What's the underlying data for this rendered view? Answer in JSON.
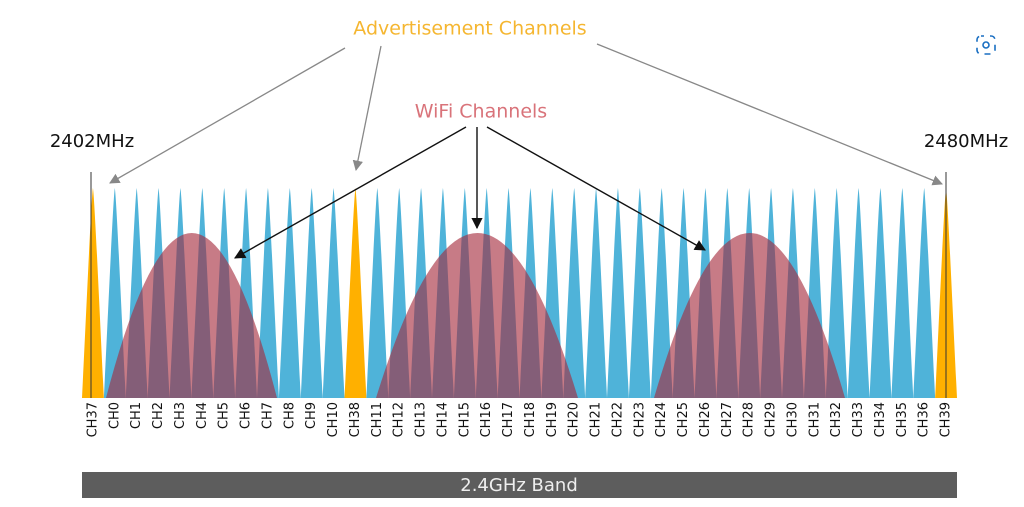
{
  "labels": {
    "advertisement": "Advertisement Channels",
    "wifi": "WiFi Channels",
    "low_freq": "2402MHz",
    "high_freq": "2480MHz",
    "band": "2.4GHz Band"
  },
  "channels": [
    {
      "label": "CH37",
      "color": "#ffb000"
    },
    {
      "label": "CH0",
      "color": "#4fb3d9"
    },
    {
      "label": "CH1",
      "color": "#4fb3d9"
    },
    {
      "label": "CH2",
      "color": "#4fb3d9"
    },
    {
      "label": "CH3",
      "color": "#4fb3d9"
    },
    {
      "label": "CH4",
      "color": "#4fb3d9"
    },
    {
      "label": "CH5",
      "color": "#4fb3d9"
    },
    {
      "label": "CH6",
      "color": "#4fb3d9"
    },
    {
      "label": "CH7",
      "color": "#4fb3d9"
    },
    {
      "label": "CH8",
      "color": "#4fb3d9"
    },
    {
      "label": "CH9",
      "color": "#4fb3d9"
    },
    {
      "label": "CH10",
      "color": "#4fb3d9"
    },
    {
      "label": "CH38",
      "color": "#ffb000"
    },
    {
      "label": "CH11",
      "color": "#4fb3d9"
    },
    {
      "label": "CH12",
      "color": "#4fb3d9"
    },
    {
      "label": "CH13",
      "color": "#4fb3d9"
    },
    {
      "label": "CH14",
      "color": "#4fb3d9"
    },
    {
      "label": "CH15",
      "color": "#4fb3d9"
    },
    {
      "label": "CH16",
      "color": "#4fb3d9"
    },
    {
      "label": "CH17",
      "color": "#4fb3d9"
    },
    {
      "label": "CH18",
      "color": "#4fb3d9"
    },
    {
      "label": "CH19",
      "color": "#4fb3d9"
    },
    {
      "label": "CH20",
      "color": "#4fb3d9"
    },
    {
      "label": "CH21",
      "color": "#4fb3d9"
    },
    {
      "label": "CH22",
      "color": "#4fb3d9"
    },
    {
      "label": "CH23",
      "color": "#4fb3d9"
    },
    {
      "label": "CH24",
      "color": "#4fb3d9"
    },
    {
      "label": "CH25",
      "color": "#4fb3d9"
    },
    {
      "label": "CH26",
      "color": "#4fb3d9"
    },
    {
      "label": "CH27",
      "color": "#4fb3d9"
    },
    {
      "label": "CH28",
      "color": "#4fb3d9"
    },
    {
      "label": "CH29",
      "color": "#4fb3d9"
    },
    {
      "label": "CH30",
      "color": "#4fb3d9"
    },
    {
      "label": "CH31",
      "color": "#4fb3d9"
    },
    {
      "label": "CH32",
      "color": "#4fb3d9"
    },
    {
      "label": "CH33",
      "color": "#4fb3d9"
    },
    {
      "label": "CH34",
      "color": "#4fb3d9"
    },
    {
      "label": "CH35",
      "color": "#4fb3d9"
    },
    {
      "label": "CH36",
      "color": "#4fb3d9"
    },
    {
      "label": "CH39",
      "color": "#ffb000"
    }
  ]
}
